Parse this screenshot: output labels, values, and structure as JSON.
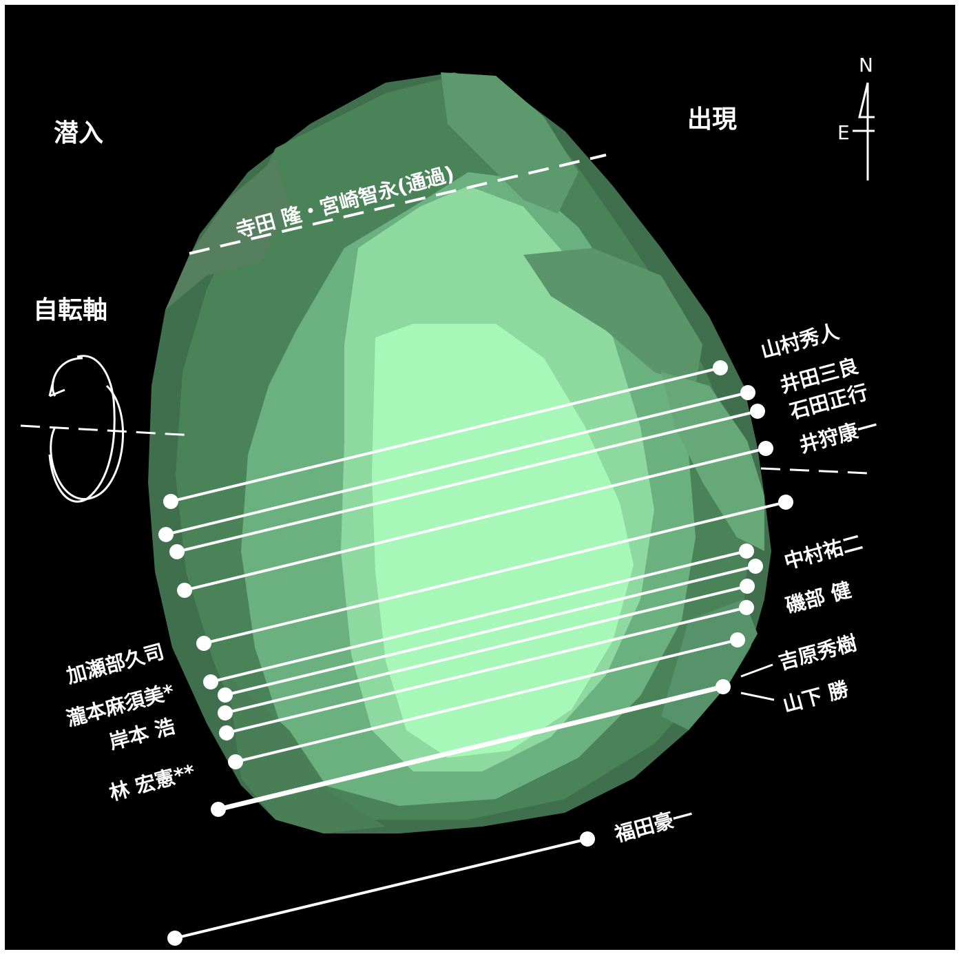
{
  "labels": {
    "ingress": "潜入",
    "egress": "出現",
    "rotation_axis": "自転軸",
    "compass_n": "N",
    "compass_e": "E"
  },
  "observers": {
    "terada_miyazaki": "寺田 隆・宮崎智永(通過)",
    "yamamura": "山村秀人",
    "ida": "井田三良",
    "ishida": "石田正行",
    "ikari": "井狩康一",
    "nakamura": "中村祐二",
    "isobe": "磯部 健",
    "yoshihara": "吉原秀樹",
    "yamashita": "山下 勝",
    "kasebe": "加瀬部久司",
    "takimoto": "瀧本麻須美*",
    "kishimoto": "岸本 浩",
    "hayashi": "林 宏憲**",
    "fukuda": "福田豪一"
  },
  "colors": {
    "background": "#000000",
    "frame": "#ffffff",
    "chord": "#ffffff",
    "shape_dark": "#3d6a4a",
    "shape_mid": "#5f9e72",
    "shape_light": "#a6f7b8"
  }
}
